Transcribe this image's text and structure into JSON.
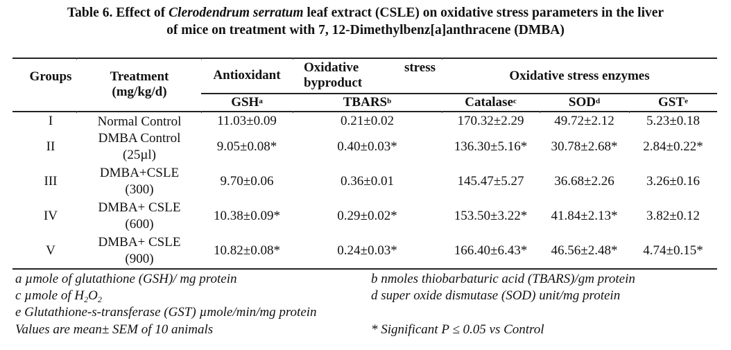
{
  "title": {
    "line1_pre": "Table 6. Effect of ",
    "line1_italic": "Clerodendrum serratum",
    "line1_post": " leaf extract (CSLE) on oxidative stress parameters in the liver",
    "line2": "of mice on treatment with 7, 12-Dimethylbenz[a]anthracene (DMBA)"
  },
  "header": {
    "groups": "Groups",
    "treatment_line1": "Treatment",
    "treatment_line2": "(mg/kg/d)",
    "antioxidant": "Antioxidant",
    "byproduct_word1": "Oxidative",
    "byproduct_word2": "stress",
    "byproduct_line2": "byproduct",
    "enzymes": "Oxidative stress enzymes",
    "gsh": "GSH",
    "gsh_sup": "a",
    "tbars": "TBARS",
    "tbars_sup": "b",
    "catalase": "Catalase",
    "catalase_sup": "c",
    "sod": "SOD",
    "sod_sup": "d",
    "gst": "GST",
    "gst_sup": "e"
  },
  "rows": [
    {
      "group": "I",
      "treatment": [
        "Normal Control"
      ],
      "gsh": "11.03±0.09",
      "tbars": "0.21±0.02",
      "catalase": "170.32±2.29",
      "sod": "49.72±2.12",
      "gst": "5.23±0.18"
    },
    {
      "group": "II",
      "treatment": [
        "DMBA Control",
        "(25µl)"
      ],
      "gsh": "9.05±0.08*",
      "tbars": "0.40±0.03*",
      "catalase": "136.30±5.16*",
      "sod": "30.78±2.68*",
      "gst": "2.84±0.22*"
    },
    {
      "group": "III",
      "treatment": [
        "DMBA+CSLE",
        "(300)"
      ],
      "gsh": "9.70±0.06",
      "tbars": "0.36±0.01",
      "catalase": "145.47±5.27",
      "sod": "36.68±2.26",
      "gst": "3.26±0.16"
    },
    {
      "group": "IV",
      "treatment": [
        "DMBA+ CSLE",
        "(600)"
      ],
      "gsh": "10.38±0.09*",
      "tbars": "0.29±0.02*",
      "catalase": "153.50±3.22*",
      "sod": "41.84±2.13*",
      "gst": "3.82±0.12"
    },
    {
      "group": "V",
      "treatment": [
        "DMBA+ CSLE",
        "(900)"
      ],
      "gsh": "10.82±0.08*",
      "tbars": "0.24±0.03*",
      "catalase": "166.40±6.43*",
      "sod": "46.56±2.48*",
      "gst": "4.74±0.15*"
    }
  ],
  "footnotes": {
    "a": "a µmole of glutathione (GSH)/ mg protein",
    "b": "b nmoles thiobarbaturic acid (TBARS)/gm protein",
    "c_pre": "c µmole of H",
    "c_sub1": "2",
    "c_mid": "O",
    "c_sub2": "2",
    "d": "d super oxide dismutase (SOD) unit/mg protein",
    "e": "e Glutathione-s-transferase (GST) µmole/min/mg protein",
    "values": "Values are mean± SEM of 10 animals",
    "significance": "* Significant P ≤ 0.05 vs Control"
  }
}
